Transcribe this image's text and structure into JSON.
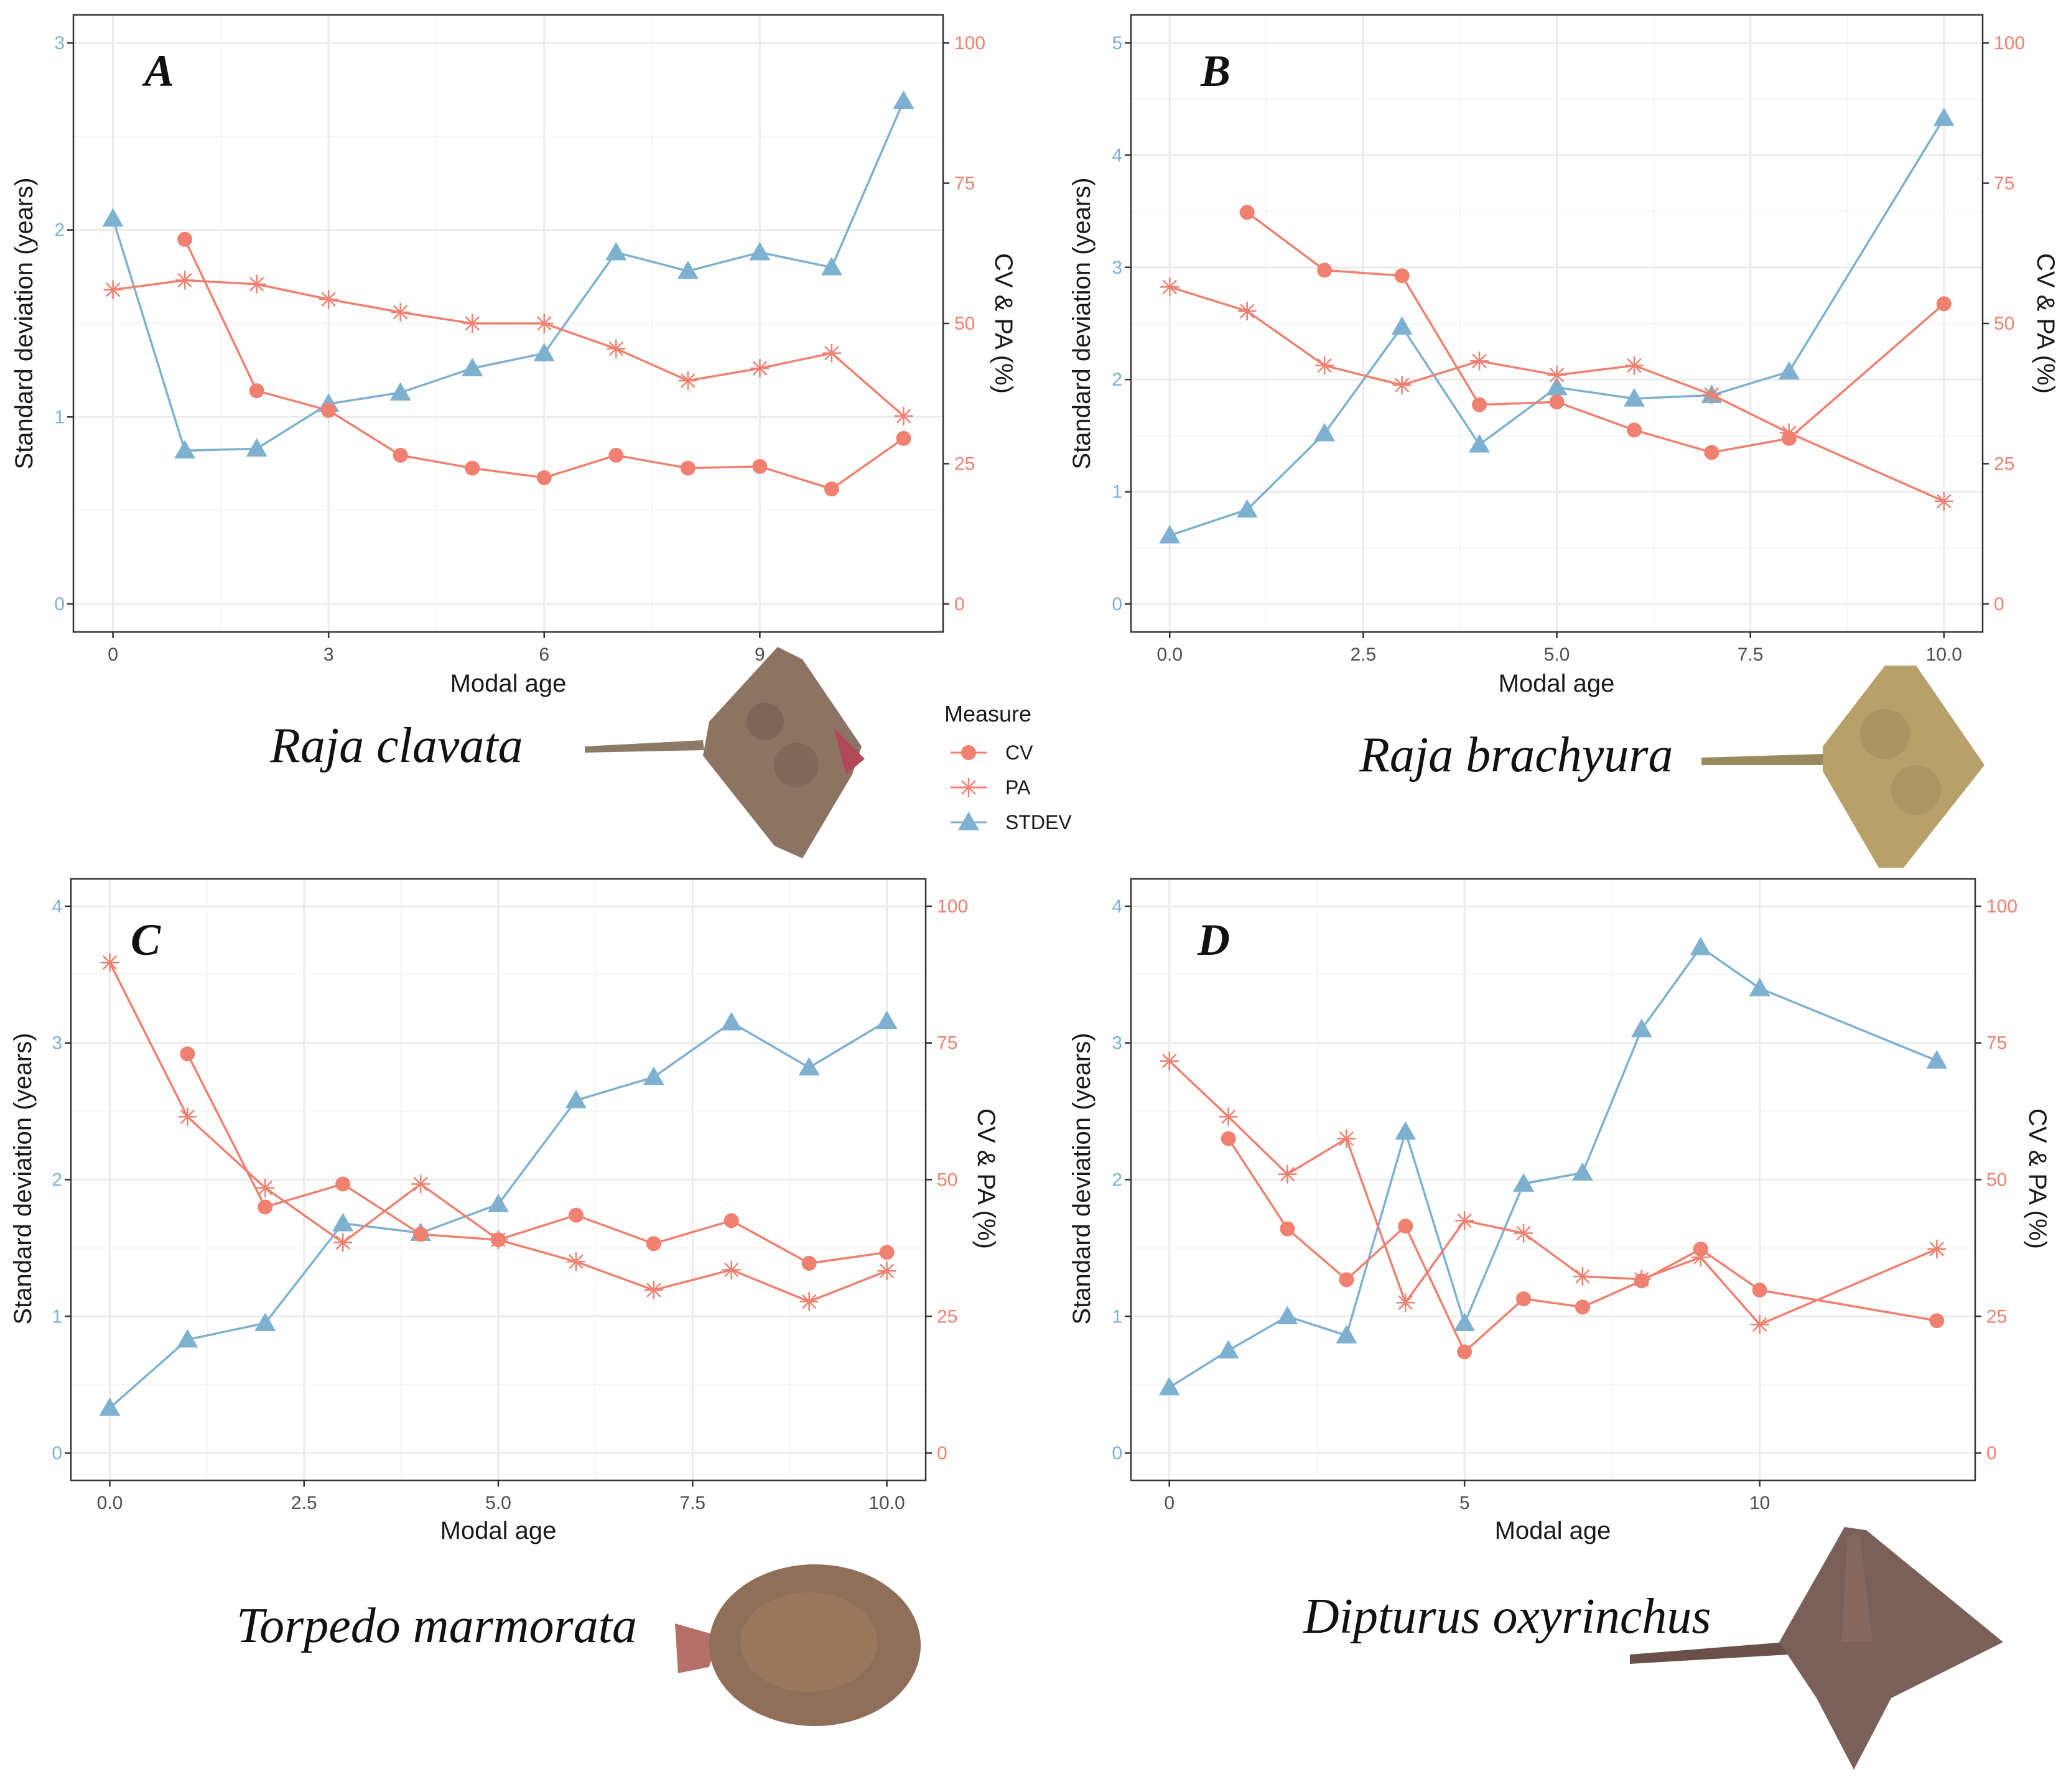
{
  "colors": {
    "cv": "#F08070",
    "pa": "#F08070",
    "stdev": "#7EB0D0",
    "grid_major": "#EBEBEB",
    "grid_minor": "#F5F5F5",
    "frame": "#333333",
    "left_tick": "#7EB0D0",
    "right_tick": "#F08070"
  },
  "legend": {
    "title": "Measure",
    "items": [
      {
        "key": "cv",
        "label": "CV",
        "marker": "circle"
      },
      {
        "key": "pa",
        "label": "PA",
        "marker": "asterisk"
      },
      {
        "key": "stdev",
        "label": "STDEV",
        "marker": "triangle"
      }
    ]
  },
  "chart_data": [
    {
      "type": "line",
      "panel": "A",
      "species": "Raja clavata",
      "xlabel": "Modal age",
      "ylabel_left": "Standard deviation (years)",
      "ylabel_right": "CV & PA (%)",
      "xlim": [
        -0.55,
        11.55
      ],
      "ylim_left": [
        -0.15,
        3.15
      ],
      "ylim_right": [
        -5,
        105
      ],
      "xticks": [
        0,
        3,
        6,
        9
      ],
      "xtick_labels": [
        "0",
        "3",
        "6",
        "9"
      ],
      "yticks_left": [
        0,
        1,
        2,
        3
      ],
      "ytick_labels_left": [
        "0",
        "1",
        "2",
        "3"
      ],
      "yticks_right": [
        0,
        25,
        50,
        75,
        100
      ],
      "ytick_labels_right": [
        "0",
        "25",
        "50",
        "75",
        "100"
      ],
      "series": [
        {
          "name": "CV",
          "key": "cv",
          "axis": "right",
          "x": [
            1,
            2,
            3,
            4,
            5,
            6,
            7,
            8,
            9,
            10,
            11
          ],
          "values": [
            65,
            38,
            34.5,
            26.5,
            24.2,
            22.5,
            26.5,
            24.2,
            24.5,
            20.5,
            29.5
          ]
        },
        {
          "name": "PA",
          "key": "pa",
          "axis": "right",
          "x": [
            0,
            1,
            2,
            3,
            4,
            5,
            6,
            7,
            8,
            9,
            10,
            11
          ],
          "values": [
            56,
            57.7,
            57,
            54.3,
            52,
            50,
            50,
            45.5,
            39.8,
            42,
            44.7,
            33.5
          ]
        },
        {
          "name": "STDEV",
          "key": "stdev",
          "axis": "left",
          "x": [
            0,
            1,
            2,
            3,
            4,
            5,
            6,
            7,
            8,
            9,
            10,
            11
          ],
          "values": [
            2.06,
            0.82,
            0.83,
            1.07,
            1.13,
            1.26,
            1.34,
            1.88,
            1.78,
            1.88,
            1.8,
            2.69
          ]
        }
      ]
    },
    {
      "type": "line",
      "panel": "B",
      "species": "Raja brachyura",
      "xlabel": "Modal age",
      "ylabel_left": "Standard deviation (years)",
      "ylabel_right": "CV & PA (%)",
      "xlim": [
        -0.5,
        10.5
      ],
      "ylim_left": [
        -0.25,
        5.25
      ],
      "ylim_right": [
        -5,
        105
      ],
      "xticks": [
        0,
        2.5,
        5,
        7.5,
        10
      ],
      "xtick_labels": [
        "0.0",
        "2.5",
        "5.0",
        "7.5",
        "10.0"
      ],
      "yticks_left": [
        0,
        1,
        2,
        3,
        4,
        5
      ],
      "ytick_labels_left": [
        "0",
        "1",
        "2",
        "3",
        "4",
        "5"
      ],
      "yticks_right": [
        0,
        25,
        50,
        75,
        100
      ],
      "ytick_labels_right": [
        "0",
        "25",
        "50",
        "75",
        "100"
      ],
      "series": [
        {
          "name": "CV",
          "key": "cv",
          "axis": "right",
          "x": [
            1,
            2,
            3,
            4,
            5,
            6,
            7,
            8,
            10
          ],
          "values": [
            69.8,
            59.5,
            58.5,
            35.5,
            36,
            31,
            27,
            29.5,
            53.5
          ]
        },
        {
          "name": "PA",
          "key": "pa",
          "axis": "right",
          "x": [
            0,
            1,
            2,
            3,
            4,
            5,
            6,
            7,
            8,
            10
          ],
          "values": [
            56.5,
            52.2,
            42.5,
            39,
            43.3,
            40.8,
            42.5,
            37.3,
            30.5,
            18.3
          ]
        },
        {
          "name": "STDEV",
          "key": "stdev",
          "axis": "left",
          "x": [
            0,
            1,
            2,
            3,
            4,
            5,
            6,
            7,
            8,
            10
          ],
          "values": [
            0.61,
            0.84,
            1.52,
            2.47,
            1.42,
            1.93,
            1.83,
            1.86,
            2.07,
            4.33
          ]
        }
      ]
    },
    {
      "type": "line",
      "panel": "C",
      "species": "Torpedo marmorata",
      "xlabel": "Modal age",
      "ylabel_left": "Standard deviation (years)",
      "ylabel_right": "CV & PA (%)",
      "xlim": [
        -0.5,
        10.5
      ],
      "ylim_left": [
        -0.2,
        4.2
      ],
      "ylim_right": [
        -5,
        105
      ],
      "xticks": [
        0,
        2.5,
        5,
        7.5,
        10
      ],
      "xtick_labels": [
        "0.0",
        "2.5",
        "5.0",
        "7.5",
        "10.0"
      ],
      "yticks_left": [
        0,
        1,
        2,
        3,
        4
      ],
      "ytick_labels_left": [
        "0",
        "1",
        "2",
        "3",
        "4"
      ],
      "yticks_right": [
        0,
        25,
        50,
        75,
        100
      ],
      "ytick_labels_right": [
        "0",
        "25",
        "50",
        "75",
        "100"
      ],
      "series": [
        {
          "name": "CV",
          "key": "cv",
          "axis": "right",
          "x": [
            1,
            2,
            3,
            4,
            5,
            6,
            7,
            8,
            9,
            10
          ],
          "values": [
            73,
            45,
            49.2,
            40,
            39,
            43.5,
            38.3,
            42.5,
            34.7,
            36.7
          ]
        },
        {
          "name": "PA",
          "key": "pa",
          "axis": "right",
          "x": [
            0,
            1,
            2,
            3,
            4,
            5,
            6,
            7,
            8,
            9,
            10
          ],
          "values": [
            89.7,
            61.5,
            48.5,
            38.5,
            49.2,
            39,
            35,
            29.8,
            33.5,
            27.7,
            33.3
          ]
        },
        {
          "name": "STDEV",
          "key": "stdev",
          "axis": "left",
          "x": [
            0,
            1,
            2,
            3,
            4,
            5,
            6,
            7,
            8,
            9,
            10
          ],
          "values": [
            0.33,
            0.83,
            0.95,
            1.68,
            1.61,
            1.82,
            2.58,
            2.75,
            3.15,
            2.82,
            3.16
          ]
        }
      ]
    },
    {
      "type": "line",
      "panel": "D",
      "species": "Dipturus oxyrinchus",
      "xlabel": "Modal age",
      "ylabel_left": "Standard deviation (years)",
      "ylabel_right": "CV & PA (%)",
      "xlim": [
        -0.65,
        13.65
      ],
      "ylim_left": [
        -0.2,
        4.2
      ],
      "ylim_right": [
        -5,
        105
      ],
      "xticks": [
        0,
        5,
        10
      ],
      "xtick_labels": [
        "0",
        "5",
        "10"
      ],
      "yticks_left": [
        0,
        1,
        2,
        3,
        4
      ],
      "ytick_labels_left": [
        "0",
        "1",
        "2",
        "3",
        "4"
      ],
      "yticks_right": [
        0,
        25,
        50,
        75,
        100
      ],
      "ytick_labels_right": [
        "0",
        "25",
        "50",
        "75",
        "100"
      ],
      "series": [
        {
          "name": "CV",
          "key": "cv",
          "axis": "right",
          "x": [
            1,
            2,
            3,
            4,
            5,
            6,
            7,
            8,
            9,
            10,
            13
          ],
          "values": [
            57.5,
            41,
            31.7,
            41.5,
            18.5,
            28.2,
            26.7,
            31.5,
            37.3,
            29.8,
            24.2
          ]
        },
        {
          "name": "PA",
          "key": "pa",
          "axis": "right",
          "x": [
            0,
            1,
            2,
            3,
            4,
            5,
            6,
            7,
            8,
            9,
            10,
            13
          ],
          "values": [
            71.7,
            61.5,
            51,
            57.5,
            27.5,
            42.5,
            40.2,
            32.3,
            31.8,
            35.8,
            23.5,
            37.3
          ]
        },
        {
          "name": "STDEV",
          "key": "stdev",
          "axis": "left",
          "x": [
            0,
            1,
            2,
            3,
            4,
            5,
            6,
            7,
            8,
            9,
            10,
            13
          ],
          "values": [
            0.48,
            0.75,
            1.0,
            0.86,
            2.35,
            0.95,
            1.97,
            2.05,
            3.1,
            3.7,
            3.4,
            2.87
          ]
        }
      ]
    }
  ]
}
